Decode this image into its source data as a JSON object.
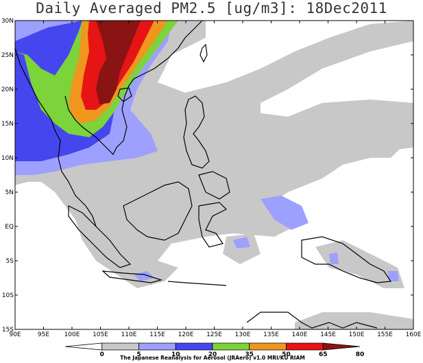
{
  "title": "Daily Averaged PM2.5 [ug/m3]: 18Dec2011",
  "lat_labels": [
    "30N",
    "25N",
    "20N",
    "15N",
    "10N",
    "5N",
    "EQ",
    "5S",
    "10S",
    "15S"
  ],
  "lon_labels": [
    "90E",
    "95E",
    "100E",
    "105E",
    "110E",
    "115E",
    "120E",
    "125E",
    "130E",
    "135E",
    "140E",
    "145E",
    "150E",
    "155E",
    "160E"
  ],
  "colorbar": {
    "levels": [
      "0",
      "5",
      "10",
      "20",
      "35",
      "50",
      "65",
      "80"
    ],
    "colors": [
      "#ffffff",
      "#c8c8c8",
      "#9ea0ff",
      "#4646ee",
      "#7cd33a",
      "#f0961e",
      "#e61414",
      "#8a1414"
    ]
  },
  "credit": "The Japanese Reanalysis for Aerosol (JRAero) v1.0 MRI/KU RIAM"
}
